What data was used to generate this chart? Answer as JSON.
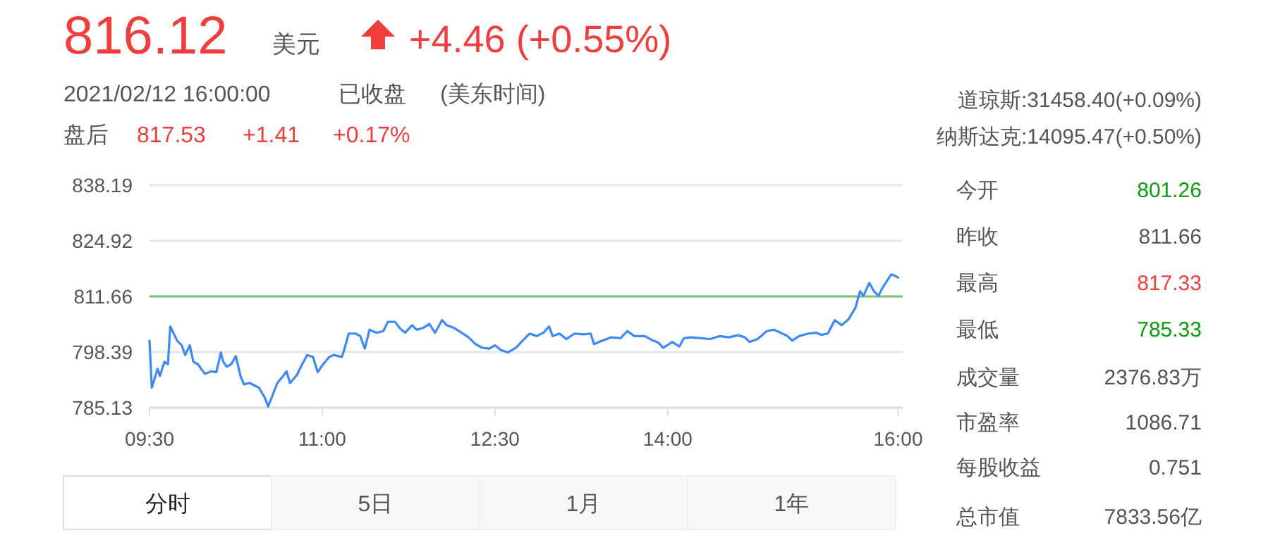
{
  "chart_data": [
    {
      "type": "other",
      "annotations": [
        "816.12",
        "美元",
        "+4.46 (+0.55%)",
        "2021/02/12 16:00:00",
        "已收盘",
        "(美东时间)",
        "盘后",
        "817.53",
        "+1.41",
        "+0.17%",
        "道琼斯:31458.40(+0.09%)",
        "纳斯达克:14095.47(+0.50%)"
      ]
    },
    {
      "type": "line",
      "xlim": [
        9.5,
        16.04
      ],
      "ylim": [
        785.13,
        838.19
      ],
      "yticks": [
        785.13,
        798.39,
        811.66,
        824.92,
        838.19
      ],
      "grid": "y",
      "xticks": [
        {
          "value": 9.5,
          "label": "09:30"
        },
        {
          "value": 11,
          "label": "11:00"
        },
        {
          "value": 12.5,
          "label": "12:30"
        },
        {
          "value": 14,
          "label": "14:00"
        },
        {
          "value": 16,
          "label": "16:00"
        }
      ],
      "ref_lines": [
        {
          "axis": "y",
          "value": 811.66,
          "color": "#7cc47c"
        }
      ],
      "series": [
        {
          "color": "#3d8af7",
          "x": [
            9.5,
            9.52,
            9.57,
            9.59,
            9.63,
            9.66,
            9.68,
            9.74,
            9.78,
            9.81,
            9.85,
            9.88,
            9.92,
            9.98,
            10.04,
            10.08,
            10.12,
            10.14,
            10.17,
            10.21,
            10.25,
            10.29,
            10.32,
            10.37,
            10.45,
            10.5,
            10.53,
            10.57,
            10.61,
            10.66,
            10.69,
            10.72,
            10.78,
            10.82,
            10.87,
            10.92,
            10.96,
            11.0,
            11.06,
            11.1,
            11.17,
            11.19,
            11.23,
            11.29,
            11.33,
            11.37,
            11.41,
            11.47,
            11.53,
            11.57,
            11.63,
            11.68,
            11.72,
            11.78,
            11.82,
            11.88,
            11.93,
            11.98,
            12.04,
            12.08,
            12.14,
            12.21,
            12.27,
            12.33,
            12.39,
            12.45,
            12.5,
            12.55,
            12.61,
            12.68,
            12.74,
            12.8,
            12.86,
            12.92,
            12.97,
            13.0,
            13.06,
            13.12,
            13.19,
            13.27,
            13.33,
            13.36,
            13.43,
            13.51,
            13.59,
            13.65,
            13.71,
            13.8,
            13.86,
            13.92,
            13.96,
            14.04,
            14.1,
            14.14,
            14.2,
            14.29,
            14.37,
            14.45,
            14.53,
            14.61,
            14.67,
            14.71,
            14.78,
            14.86,
            14.92,
            14.98,
            15.04,
            15.08,
            15.14,
            15.22,
            15.29,
            15.33,
            15.39,
            15.45,
            15.51,
            15.57,
            15.63,
            15.67,
            15.7,
            15.75,
            15.79,
            15.83,
            15.86,
            15.9,
            15.94,
            15.98,
            16.0
          ],
          "values": [
            801.1,
            789.9,
            794.4,
            792.7,
            796.1,
            795.5,
            804.5,
            801.1,
            800.0,
            797.7,
            800.0,
            796.1,
            795.5,
            793.2,
            793.8,
            793.6,
            798.3,
            796.1,
            794.9,
            795.5,
            797.4,
            792.7,
            790.7,
            791.0,
            789.9,
            787.6,
            785.4,
            788.2,
            791.0,
            792.7,
            793.8,
            791.0,
            792.9,
            795.2,
            797.7,
            797.2,
            793.6,
            795.2,
            797.2,
            797.7,
            797.2,
            798.9,
            802.8,
            802.8,
            802.2,
            799.2,
            803.7,
            803.0,
            803.4,
            805.6,
            805.6,
            803.9,
            803.0,
            804.8,
            803.7,
            804.2,
            805.1,
            803.0,
            806.0,
            804.8,
            804.2,
            803.0,
            801.9,
            800.3,
            799.4,
            799.2,
            800.0,
            798.9,
            798.3,
            799.4,
            801.1,
            802.8,
            802.2,
            803.0,
            804.5,
            802.2,
            802.8,
            801.5,
            802.8,
            802.6,
            802.8,
            800.3,
            801.1,
            801.9,
            801.7,
            803.4,
            802.2,
            802.2,
            801.3,
            800.6,
            799.4,
            800.8,
            799.7,
            801.7,
            801.9,
            801.7,
            801.5,
            802.2,
            801.9,
            802.4,
            801.9,
            800.8,
            801.5,
            803.4,
            803.7,
            803.0,
            802.2,
            801.1,
            802.2,
            802.8,
            803.0,
            802.5,
            802.8,
            806.0,
            804.8,
            806.2,
            809.0,
            812.9,
            811.8,
            814.9,
            812.9,
            811.8,
            813.5,
            815.2,
            816.9,
            816.5,
            816.1
          ]
        }
      ]
    },
    {
      "type": "other",
      "annotations": [
        "今开",
        "801.26",
        "昨收",
        "811.66",
        "最高",
        "817.33",
        "最低",
        "785.33",
        "成交量",
        "2376.83万",
        "市盈率",
        "1086.71",
        "每股收益",
        "0.751",
        "总市值",
        "7833.56亿"
      ]
    },
    {
      "type": "other",
      "annotations": [
        "分时",
        "5日",
        "1月",
        "1年"
      ]
    }
  ]
}
